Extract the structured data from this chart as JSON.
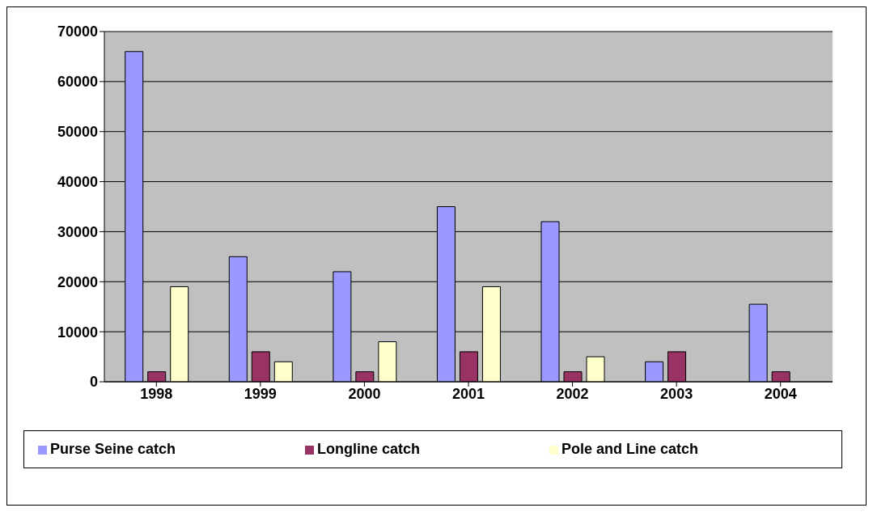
{
  "chart_data": {
    "type": "bar",
    "categories": [
      "1998",
      "1999",
      "2000",
      "2001",
      "2002",
      "2003",
      "2004"
    ],
    "series": [
      {
        "name": "Purse Seine catch",
        "color": "#9999ff",
        "values": [
          66000,
          25000,
          22000,
          35000,
          32000,
          4000,
          15500
        ]
      },
      {
        "name": "Longline catch",
        "color": "#993366",
        "values": [
          2000,
          6000,
          2000,
          6000,
          2000,
          6000,
          2000
        ]
      },
      {
        "name": "Pole and Line catch",
        "color": "#ffffcc",
        "values": [
          19000,
          4000,
          8000,
          19000,
          5000,
          0,
          0
        ]
      }
    ],
    "ylim": [
      0,
      70000
    ],
    "yticks": [
      0,
      10000,
      20000,
      30000,
      40000,
      50000,
      60000,
      70000
    ],
    "grid": "y",
    "legend": "bottom"
  }
}
